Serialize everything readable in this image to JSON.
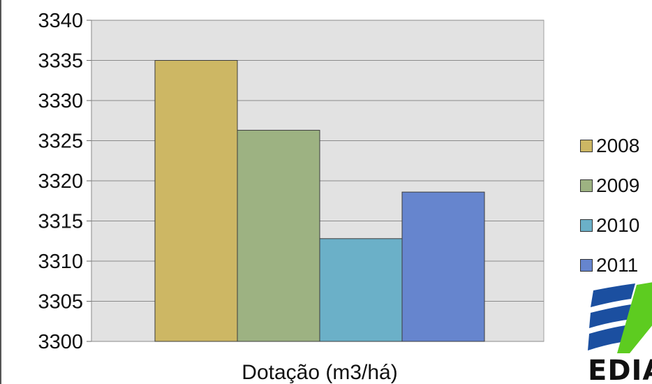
{
  "chart_data": {
    "type": "bar",
    "title": "",
    "xlabel": "Dotação (m3/há)",
    "ylabel": "",
    "ylim": [
      3300,
      3340
    ],
    "yticks": [
      "3300",
      "3305",
      "3310",
      "3315",
      "3320",
      "3325",
      "3330",
      "3335",
      "3340"
    ],
    "grid": true,
    "legend_position": "right",
    "categories": [
      "Dotação (m3/há)"
    ],
    "series": [
      {
        "name": "2008",
        "values": [
          3335.0
        ],
        "color": "#CDB764"
      },
      {
        "name": "2009",
        "values": [
          3326.3
        ],
        "color": "#9DB282"
      },
      {
        "name": "2010",
        "values": [
          3312.8
        ],
        "color": "#6BB0C8"
      },
      {
        "name": "2011",
        "values": [
          3318.6
        ],
        "color": "#6685CE"
      }
    ]
  },
  "logo": {
    "text": "EDIA"
  }
}
